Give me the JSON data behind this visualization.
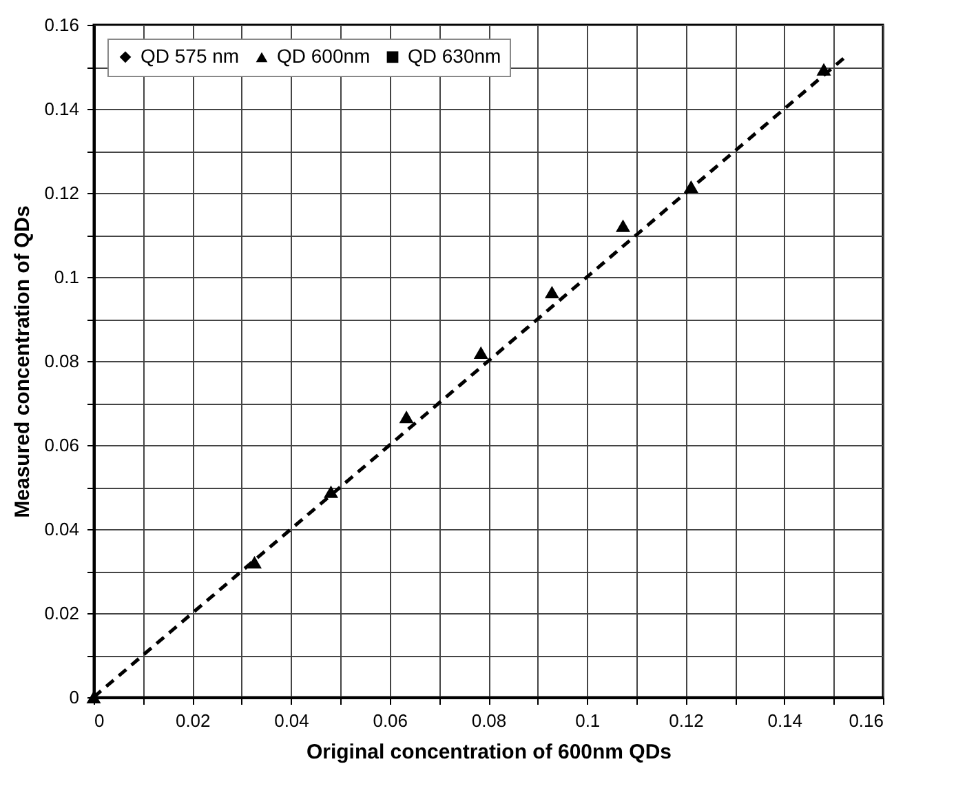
{
  "chart_data": {
    "type": "scatter",
    "xlabel": "Original concentration of 600nm QDs",
    "ylabel": "Measured concentration of QDs",
    "x": [
      0,
      0.0326,
      0.0481,
      0.0634,
      0.0785,
      0.0929,
      0.1073,
      0.1211,
      0.148
    ],
    "series": [
      {
        "name": "QD 575 nm",
        "color": "#000000",
        "marker": "diamond",
        "values": [
          null,
          null,
          null,
          null,
          null,
          null,
          null,
          null,
          null
        ]
      },
      {
        "name": "QD 600nm",
        "color": "#000000",
        "marker": "triangle",
        "values": [
          0,
          0.0321,
          0.0489,
          0.0667,
          0.082,
          0.0964,
          0.1122,
          0.1215,
          0.1494
        ]
      },
      {
        "name": "QD 630nm",
        "color": "#000000",
        "marker": "square",
        "values": [
          null,
          null,
          null,
          null,
          null,
          null,
          null,
          null,
          null
        ]
      },
      {
        "type": "line",
        "color": "#000000",
        "marker": "none",
        "line_style": "dashed",
        "x": [
          0,
          0.153
        ],
        "values": [
          0,
          0.153
        ]
      }
    ],
    "xlim": [
      0,
      0.16
    ],
    "ylim": [
      0,
      0.16
    ],
    "xticks": [
      0,
      {
        "value": 0.01,
        "label": null
      },
      0.02,
      {
        "value": 0.03,
        "label": null
      },
      0.04,
      {
        "value": 0.05,
        "label": null
      },
      0.06,
      {
        "value": 0.07,
        "label": null
      },
      0.08,
      {
        "value": 0.09,
        "label": null
      },
      0.1,
      {
        "value": 0.11,
        "label": null
      },
      0.12,
      {
        "value": 0.13,
        "label": null
      },
      0.14,
      {
        "value": 0.15,
        "label": null
      },
      0.16
    ],
    "yticks": [
      0,
      {
        "value": 0.01,
        "label": null
      },
      0.02,
      {
        "value": 0.03,
        "label": null
      },
      0.04,
      {
        "value": 0.05,
        "label": null
      },
      0.06,
      {
        "value": 0.07,
        "label": null
      },
      0.08,
      {
        "value": 0.09,
        "label": null
      },
      0.1,
      {
        "value": 0.11,
        "label": null
      },
      0.12,
      {
        "value": 0.13,
        "label": null
      },
      0.14,
      {
        "value": 0.15,
        "label": null
      },
      0.16
    ],
    "grid": true,
    "legend": "top left"
  }
}
